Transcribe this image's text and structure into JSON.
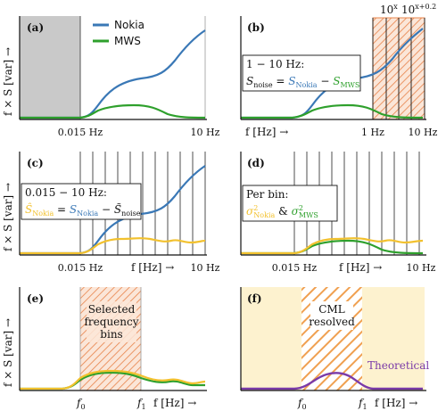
{
  "figure": {
    "ylabel": "f × S [var]  →",
    "xlabel": "f [Hz]  →",
    "colors": {
      "nokia": "#3a78b6",
      "mws": "#2ea02c",
      "yellow": "#f2c12e",
      "purple": "#7a3aa8",
      "hatch": "#e8844b",
      "cream": "#fdf2cf"
    }
  },
  "panels": {
    "a": {
      "label": "(a)",
      "tick_left": "0.015 Hz",
      "tick_right": "10 Hz",
      "legend": [
        "Nokia",
        "MWS"
      ]
    },
    "b": {
      "label": "(b)",
      "tick_left": "1 Hz",
      "tick_right": "10 Hz",
      "top_left": "10",
      "top_left_sup": "x",
      "top_right": "10",
      "top_right_sup": "x+0.2",
      "ann_line1": "1 − 10 Hz:",
      "ann_S": "S",
      "ann_noise": "noise",
      "ann_eq": " = ",
      "ann_Snokia": "S",
      "ann_nokia": "Nokia",
      "ann_minus": " − ",
      "ann_Smws": "S",
      "ann_mws": "MWS"
    },
    "c": {
      "label": "(c)",
      "tick_left": "0.015 Hz",
      "tick_right": "10 Hz",
      "ann_line1": "0.015 − 10 Hz:",
      "ann_S1": "Ŝ",
      "ann_sub1": "Nokia",
      "ann_eq": " = ",
      "ann_S2": "S",
      "ann_sub2": "Nokia",
      "ann_minus": " − ",
      "ann_S3": "S̃",
      "ann_sub3": "noise"
    },
    "d": {
      "label": "(d)",
      "tick_left": "0.015 Hz",
      "tick_right": "10 Hz",
      "ann_line1": "Per bin:",
      "ann_sig1": "σ",
      "ann_sub1": "Nokia",
      "ann_amp": " & ",
      "ann_sig2": "σ",
      "ann_sub2": "MWS",
      "sq": "2"
    },
    "e": {
      "label": "(e)",
      "ann_line1": "Selected",
      "ann_line2": "frequency",
      "ann_line3": "bins",
      "f0": "f",
      "f0sub": "0",
      "f1": "f",
      "f1sub": "1"
    },
    "f": {
      "label": "(f)",
      "ann_line1": "CML",
      "ann_line2": "resolved",
      "theoretical": "Theoretical",
      "f0": "f",
      "f0sub": "0",
      "f1": "f",
      "f1sub": "1"
    }
  }
}
